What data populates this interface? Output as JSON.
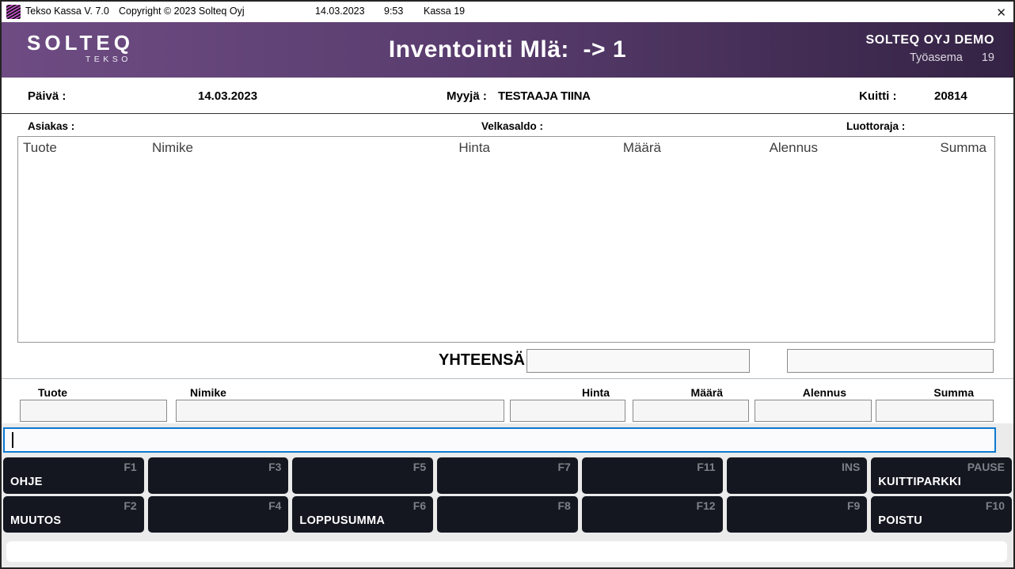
{
  "titlebar": {
    "app_title": "Tekso Kassa V. 7.0",
    "copyright": "Copyright © 2023 Solteq Oyj",
    "date": "14.03.2023",
    "time": "9:53",
    "register": "Kassa 19",
    "close_glyph": "✕"
  },
  "header": {
    "logo_main": "SOLTEQ",
    "logo_sub": "TEKSO",
    "title": "Inventointi Mlä:  -> 1",
    "company": "SOLTEQ OYJ DEMO",
    "workstation_label": "Työasema",
    "workstation_value": "19"
  },
  "info_row": {
    "paiva_label": "Päivä :",
    "paiva_value": "14.03.2023",
    "myyja_label": "Myyjä :",
    "myyja_value": "TESTAAJA TIINA",
    "kuitti_label": "Kuitti :",
    "kuitti_value": "20814"
  },
  "customer_row": {
    "asiakas_label": "Asiakas :",
    "asiakas_value": "",
    "velkasaldo_label": "Velkasaldo :",
    "velkasaldo_value": "",
    "luottoraja_label": "Luottoraja :",
    "luottoraja_value": ""
  },
  "receipt_table": {
    "columns": [
      "Tuote",
      "Nimike",
      "Hinta",
      "Määrä",
      "Alennus",
      "Summa"
    ],
    "rows": []
  },
  "totals": {
    "yhteensa_label": "YHTEENSÄ",
    "yhteensa_value": "",
    "secondary_value": ""
  },
  "entry": {
    "fields": [
      {
        "label": "Tuote",
        "value": ""
      },
      {
        "label": "Nimike",
        "value": ""
      },
      {
        "label": "Hinta",
        "value": ""
      },
      {
        "label": "Määrä",
        "value": ""
      },
      {
        "label": "Alennus",
        "value": ""
      },
      {
        "label": "Summa",
        "value": ""
      }
    ]
  },
  "command_input": {
    "value": ""
  },
  "function_keys": {
    "rows": [
      [
        {
          "label": "OHJE",
          "key": "F1"
        },
        {
          "label": "",
          "key": "F3"
        },
        {
          "label": "",
          "key": "F5"
        },
        {
          "label": "",
          "key": "F7"
        },
        {
          "label": "",
          "key": "F11"
        },
        {
          "label": "",
          "key": "INS"
        },
        {
          "label": "KUITTIPARKKI",
          "key": "PAUSE"
        }
      ],
      [
        {
          "label": "MUUTOS",
          "key": "F2"
        },
        {
          "label": "",
          "key": "F4"
        },
        {
          "label": "LOPPUSUMMA",
          "key": "F6"
        },
        {
          "label": "",
          "key": "F8"
        },
        {
          "label": "",
          "key": "F12"
        },
        {
          "label": "",
          "key": "F9"
        },
        {
          "label": "POISTU",
          "key": "F10"
        }
      ]
    ]
  },
  "colors": {
    "header_gradient_left": "#6e4c83",
    "header_gradient_right": "#342344",
    "function_key_bg": "#141720",
    "function_key_text": "#ffffff",
    "function_key_hint": "#7d8086",
    "focus_border": "#0c79d2",
    "footer_bg": "#ebebeb"
  }
}
